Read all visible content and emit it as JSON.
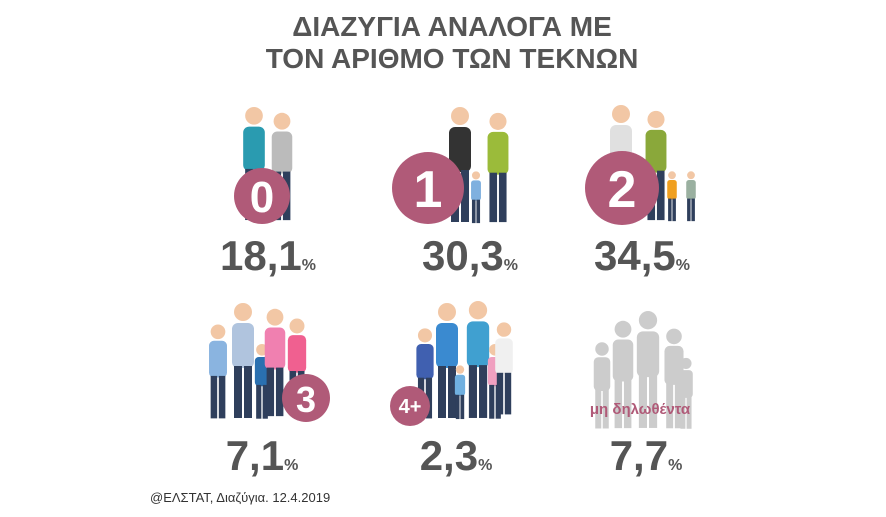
{
  "header": {
    "title_lines": [
      "ΔΙΑΖΥΓΙΑ ΑΝΑΛΟΓΑ ΜΕ",
      "ΤΟΝ ΑΡΙΘΜΟ ΤΩΝ ΤΕΚΝΩΝ"
    ]
  },
  "items": [
    {
      "badge": "0",
      "value": "18,1",
      "unit": "%"
    },
    {
      "badge": "1",
      "value": "30,3",
      "unit": "%"
    },
    {
      "badge": "2",
      "value": "34,5",
      "unit": "%"
    },
    {
      "badge": "3",
      "value": "7,1",
      "unit": "%"
    },
    {
      "badge": "4+",
      "value": "2,3",
      "unit": "%"
    },
    {
      "badge": "μη δηλωθέντα",
      "value": "7,7",
      "unit": "%"
    }
  ],
  "footer": {
    "source": "@ΕΛΣΤΑΤ, Διαζύγια. 12.4.2019"
  }
}
